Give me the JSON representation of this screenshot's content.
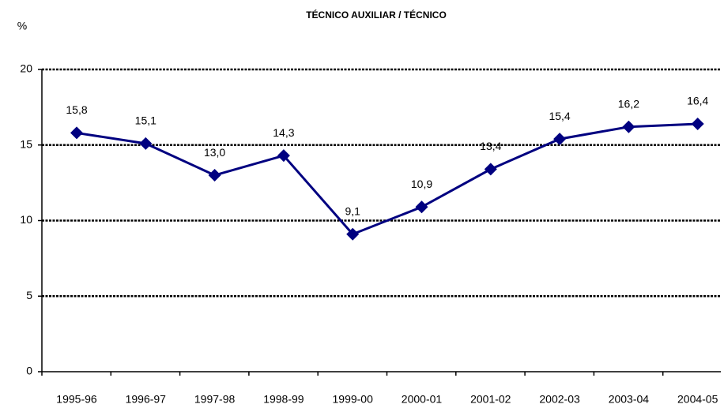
{
  "chart_data": {
    "type": "line",
    "title": "TÉCNICO  AUXILIAR / TÉCNICO",
    "y_label": "%",
    "categories": [
      "1995-96",
      "1996-97",
      "1997-98",
      "1998-99",
      "1999-00",
      "2000-01",
      "2001-02",
      "2002-03",
      "2003-04",
      "2004-05"
    ],
    "series": [
      {
        "name": "TÉCNICO  AUXILIAR / TÉCNICO",
        "color": "#000080",
        "values": [
          15.8,
          15.1,
          13.0,
          14.3,
          9.1,
          10.9,
          13.4,
          15.4,
          16.2,
          16.4
        ],
        "value_labels": [
          "15,8",
          "15,1",
          "13,0",
          "14,3",
          "9,1",
          "10,9",
          "13,4",
          "15,4",
          "16,2",
          "16,4"
        ]
      }
    ],
    "ylim": [
      0,
      20
    ],
    "yticks": [
      0,
      5,
      10,
      15,
      20
    ],
    "grid": true
  }
}
